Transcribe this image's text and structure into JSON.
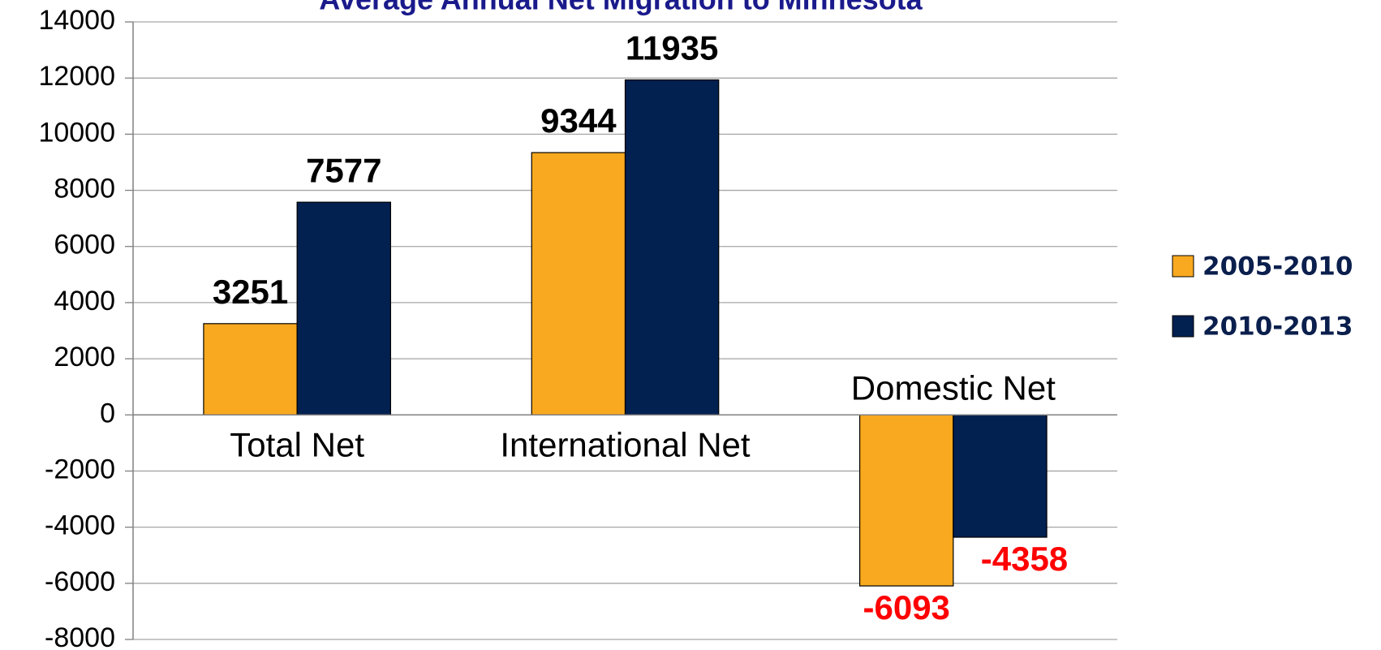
{
  "chart_data": {
    "type": "bar",
    "title": "Average Annual Net Migration to Minnesota",
    "categories": [
      "Total Net",
      "International Net",
      "Domestic Net"
    ],
    "series": [
      {
        "name": "2005-2010",
        "color": "#f9a91f",
        "values": [
          3251,
          9344,
          -6093
        ]
      },
      {
        "name": "2010-2013",
        "color": "#022050",
        "values": [
          7577,
          11935,
          -4358
        ]
      }
    ],
    "ylim": [
      -8000,
      14000
    ],
    "yticks": [
      -8000,
      -6000,
      -4000,
      -2000,
      0,
      2000,
      4000,
      6000,
      8000,
      10000,
      12000,
      14000
    ],
    "grid": true,
    "legend": "right",
    "label_color": "#000000",
    "negative_label_color": "#ff0000"
  }
}
